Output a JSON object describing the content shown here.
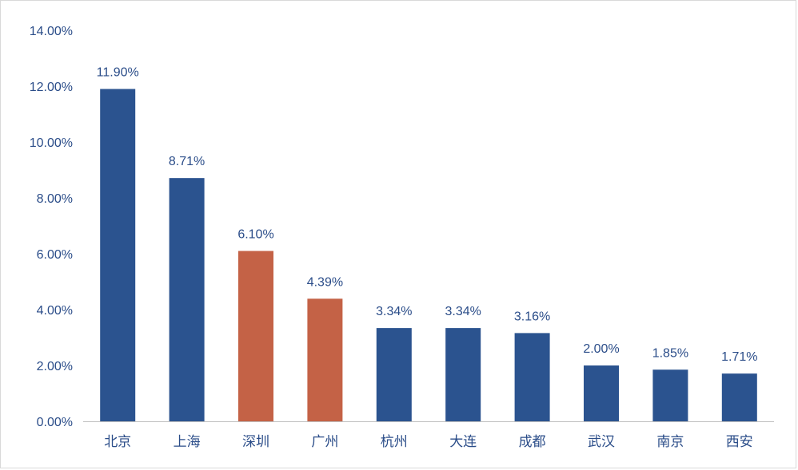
{
  "colors": {
    "primary_bar": "#2b538f",
    "highlight_bar": "#c46246",
    "axis_line": "#bfbfbf",
    "text": "#2b4d89"
  },
  "chart_data": {
    "type": "bar",
    "categories": [
      "北京",
      "上海",
      "深圳",
      "广州",
      "杭州",
      "大连",
      "成都",
      "武汉",
      "南京",
      "西安"
    ],
    "values": [
      11.9,
      8.71,
      6.1,
      4.39,
      3.34,
      3.34,
      3.16,
      2.0,
      1.85,
      1.71
    ],
    "data_labels": [
      "11.90%",
      "8.71%",
      "6.10%",
      "4.39%",
      "3.34%",
      "3.34%",
      "3.16%",
      "2.00%",
      "1.85%",
      "1.71%"
    ],
    "highlighted": [
      false,
      false,
      true,
      true,
      false,
      false,
      false,
      false,
      false,
      false
    ],
    "title": "",
    "xlabel": "",
    "ylabel": "",
    "ylim": [
      0,
      14
    ],
    "y_ticks": [
      "0.00%",
      "2.00%",
      "4.00%",
      "6.00%",
      "8.00%",
      "10.00%",
      "12.00%",
      "14.00%"
    ],
    "grid": false,
    "legend": "none"
  }
}
